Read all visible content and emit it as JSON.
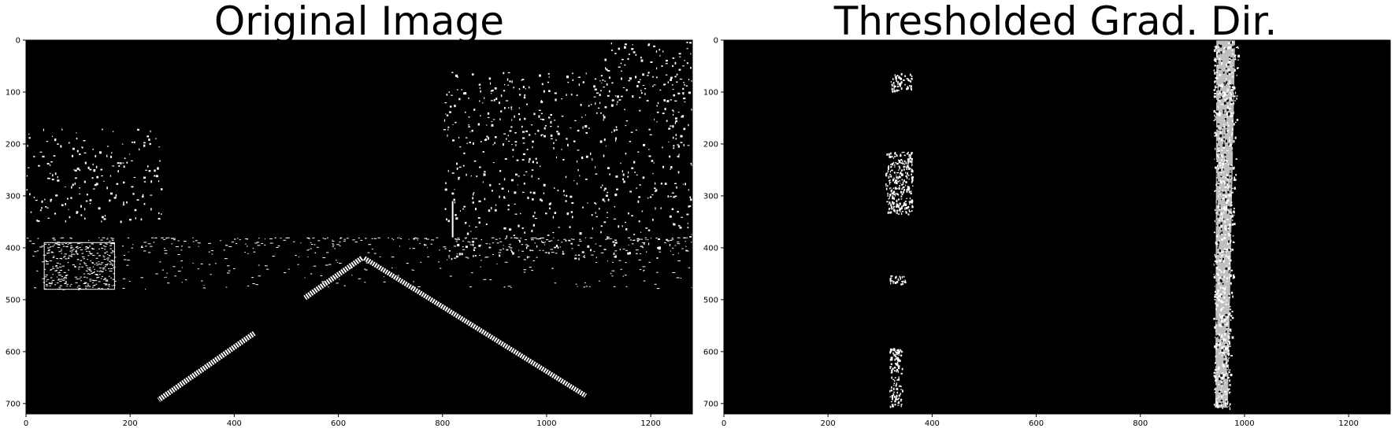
{
  "chart_data": [
    {
      "type": "image",
      "title": "Original Image",
      "xlim": [
        0,
        1280
      ],
      "ylim": [
        720,
        0
      ],
      "xticks": [
        0,
        200,
        400,
        600,
        800,
        1000,
        1200
      ],
      "yticks": [
        0,
        100,
        200,
        300,
        400,
        500,
        600,
        700
      ],
      "xtick_labels": [
        "0",
        "200",
        "400",
        "600",
        "800",
        "1000",
        "1200"
      ],
      "ytick_labels": [
        "0",
        "100",
        "200",
        "300",
        "400",
        "500",
        "600",
        "700"
      ],
      "content": "binary edge map of a road scene",
      "features": {
        "lane_lines": [
          {
            "x1": 645,
            "y1": 420,
            "x2": 255,
            "y2": 693,
            "w": 10
          },
          {
            "x1": 650,
            "y1": 420,
            "x2": 1075,
            "y2": 685,
            "w": 9
          }
        ],
        "vegetation_regions": [
          {
            "x1": 0,
            "x2": 260,
            "y1": 170,
            "y2": 350
          },
          {
            "x1": 800,
            "x2": 1280,
            "y1": 60,
            "y2": 420
          },
          {
            "x1": 1100,
            "x2": 1280,
            "y1": 0,
            "y2": 120
          }
        ],
        "vehicle": {
          "x1": 35,
          "x2": 170,
          "y1": 390,
          "y2": 480
        },
        "horizon_band": {
          "x1": 0,
          "x2": 1280,
          "y1": 380,
          "y2": 560
        }
      }
    },
    {
      "type": "image",
      "title": "Thresholded Grad. Dir.",
      "xlim": [
        0,
        1280
      ],
      "ylim": [
        720,
        0
      ],
      "xticks": [
        0,
        200,
        400,
        600,
        800,
        1000,
        1200
      ],
      "yticks": [
        0,
        100,
        200,
        300,
        400,
        500,
        600,
        700
      ],
      "xtick_labels": [
        "0",
        "200",
        "400",
        "600",
        "800",
        "1000",
        "1200"
      ],
      "ytick_labels": [
        "0",
        "100",
        "200",
        "300",
        "400",
        "500",
        "600",
        "700"
      ],
      "content": "binary mask of thresholded gradient direction",
      "features": {
        "left_lane_segments": [
          {
            "x1": 320,
            "x2": 360,
            "y1": 62,
            "y2": 98
          },
          {
            "x1": 310,
            "x2": 362,
            "y1": 215,
            "y2": 335
          },
          {
            "x1": 318,
            "x2": 348,
            "y1": 450,
            "y2": 470
          },
          {
            "x1": 318,
            "x2": 342,
            "y1": 592,
            "y2": 708
          }
        ],
        "right_lane_band": {
          "x_top_left": 940,
          "x_top_right": 988,
          "x_bot_left": 940,
          "x_bot_right": 972,
          "y1": 0,
          "y2": 708
        }
      }
    }
  ]
}
